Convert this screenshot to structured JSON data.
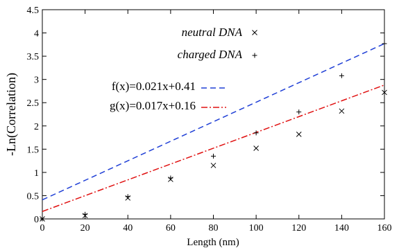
{
  "chart_data": {
    "type": "scatter",
    "title": "",
    "xlabel": "Length (nm)",
    "ylabel": "-Ln(Correlation)",
    "xlim": [
      0,
      160
    ],
    "ylim": [
      0,
      4.5
    ],
    "x_ticks": [
      "0",
      "20",
      "40",
      "60",
      "80",
      "100",
      "120",
      "140",
      "160"
    ],
    "y_ticks": [
      "0",
      "0.5",
      "1",
      "1.5",
      "2",
      "2.5",
      "3",
      "3.5",
      "4",
      "4.5"
    ],
    "grid": false,
    "legend_position": "top-left",
    "series": [
      {
        "name": "neutral DNA",
        "kind": "points",
        "marker": "x",
        "color": "#000000",
        "x": [
          0,
          20,
          40,
          60,
          80,
          100,
          120,
          140,
          160
        ],
        "y": [
          0,
          0.07,
          0.45,
          0.85,
          1.15,
          1.52,
          1.82,
          2.32,
          2.72
        ]
      },
      {
        "name": "charged DNA",
        "kind": "points",
        "marker": "+",
        "color": "#000000",
        "x": [
          0,
          20,
          40,
          60,
          80,
          100,
          120,
          140,
          160
        ],
        "y": [
          0,
          0.1,
          0.48,
          0.88,
          1.35,
          1.85,
          2.3,
          3.08,
          3.77
        ]
      },
      {
        "name": "f(x)=0.021x+0.41",
        "kind": "line",
        "style": "dashed",
        "color": "#1f3fd6",
        "slope": 0.021,
        "intercept": 0.41
      },
      {
        "name": "g(x)=0.017x+0.16",
        "kind": "line",
        "style": "dashdot",
        "color": "#e01010",
        "slope": 0.017,
        "intercept": 0.16
      }
    ]
  }
}
